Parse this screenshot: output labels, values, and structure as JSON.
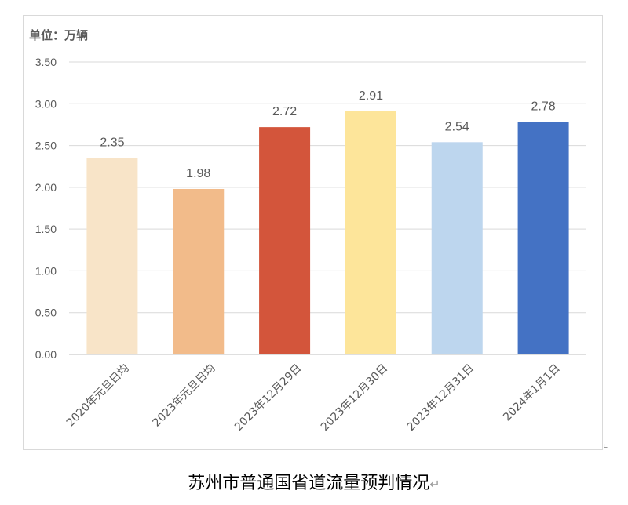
{
  "caption": "苏州市普通国省道流量预判情况",
  "paragraph_mark": "↵",
  "chart_data": {
    "type": "bar",
    "unit_label": "单位：万辆",
    "categories": [
      "2020年元旦日均",
      "2023年元旦日均",
      "2023年12月29日",
      "2023年12月30日",
      "2023年12月31日",
      "2024年1月1日"
    ],
    "values": [
      2.35,
      1.98,
      2.72,
      2.91,
      2.54,
      2.78
    ],
    "data_labels": [
      "2.35",
      "1.98",
      "2.72",
      "2.91",
      "2.54",
      "2.78"
    ],
    "bar_colors": [
      "#f8e4c8",
      "#f2bb8a",
      "#d3553b",
      "#fde59a",
      "#bdd6ee",
      "#4472c4"
    ],
    "yticks": [
      "0.00",
      "0.50",
      "1.00",
      "1.50",
      "2.00",
      "2.50",
      "3.00",
      "3.50"
    ],
    "ylim": [
      0,
      3.5
    ],
    "grid": true,
    "legend": "none"
  }
}
